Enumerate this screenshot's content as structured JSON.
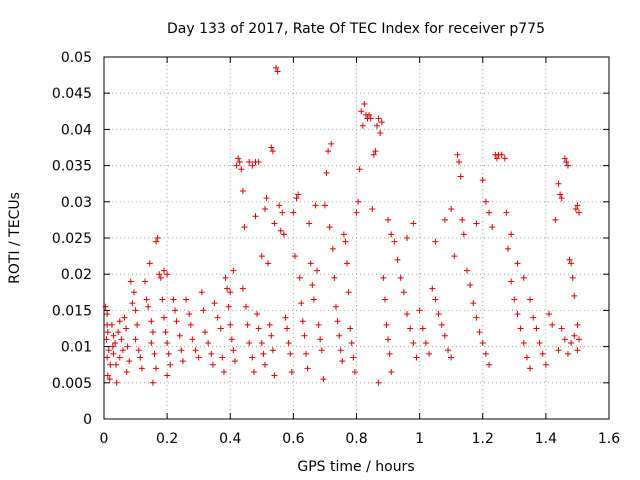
{
  "chart_data": {
    "type": "scatter",
    "title": "Day 133 of 2017, Rate Of TEC Index for receiver p775",
    "xlabel": "GPS time / hours",
    "ylabel": "ROTI / TECUs",
    "xlim": [
      0,
      1.6
    ],
    "ylim": [
      0,
      0.05
    ],
    "x_ticks": [
      0,
      0.2,
      0.4,
      0.6,
      0.8,
      1.0,
      1.2,
      1.4,
      1.6
    ],
    "x_tick_labels": [
      "0",
      "0.2",
      "0.4",
      "0.6",
      "0.8",
      "1",
      "1.2",
      "1.4",
      "1.6"
    ],
    "y_ticks": [
      0,
      0.005,
      0.01,
      0.015,
      0.02,
      0.025,
      0.03,
      0.035,
      0.04,
      0.045,
      0.05
    ],
    "y_tick_labels": [
      "0",
      "0.005",
      "0.01",
      "0.015",
      "0.02",
      "0.025",
      "0.03",
      "0.035",
      "0.04",
      "0.045",
      "0.05"
    ],
    "grid": true,
    "marker": "+",
    "marker_color": "#e00000",
    "series": [
      {
        "name": "p775",
        "points": [
          [
            0.005,
            0.0155
          ],
          [
            0.01,
            0.0145
          ],
          [
            0.01,
            0.013
          ],
          [
            0.012,
            0.012
          ],
          [
            0.008,
            0.011
          ],
          [
            0.015,
            0.0095
          ],
          [
            0.01,
            0.0085
          ],
          [
            0.02,
            0.0075
          ],
          [
            0.012,
            0.006
          ],
          [
            0.018,
            0.0055
          ],
          [
            0.025,
            0.013
          ],
          [
            0.03,
            0.0115
          ],
          [
            0.028,
            0.01
          ],
          [
            0.035,
            0.0105
          ],
          [
            0.03,
            0.009
          ],
          [
            0.038,
            0.0075
          ],
          [
            0.04,
            0.005
          ],
          [
            0.045,
            0.012
          ],
          [
            0.05,
            0.0135
          ],
          [
            0.055,
            0.011
          ],
          [
            0.06,
            0.0095
          ],
          [
            0.05,
            0.0085
          ],
          [
            0.065,
            0.014
          ],
          [
            0.07,
            0.0125
          ],
          [
            0.075,
            0.01
          ],
          [
            0.072,
            0.0065
          ],
          [
            0.08,
            0.008
          ],
          [
            0.085,
            0.019
          ],
          [
            0.09,
            0.016
          ],
          [
            0.095,
            0.0175
          ],
          [
            0.1,
            0.015
          ],
          [
            0.105,
            0.013
          ],
          [
            0.1,
            0.011
          ],
          [
            0.11,
            0.0095
          ],
          [
            0.115,
            0.0085
          ],
          [
            0.12,
            0.007
          ],
          [
            0.13,
            0.019
          ],
          [
            0.135,
            0.0165
          ],
          [
            0.14,
            0.0155
          ],
          [
            0.145,
            0.0215
          ],
          [
            0.15,
            0.0135
          ],
          [
            0.155,
            0.012
          ],
          [
            0.15,
            0.0105
          ],
          [
            0.16,
            0.009
          ],
          [
            0.165,
            0.007
          ],
          [
            0.155,
            0.005
          ],
          [
            0.165,
            0.0245
          ],
          [
            0.17,
            0.025
          ],
          [
            0.175,
            0.02
          ],
          [
            0.18,
            0.0195
          ],
          [
            0.19,
            0.0205
          ],
          [
            0.2,
            0.02
          ],
          [
            0.185,
            0.0165
          ],
          [
            0.19,
            0.014
          ],
          [
            0.195,
            0.012
          ],
          [
            0.2,
            0.0105
          ],
          [
            0.205,
            0.009
          ],
          [
            0.21,
            0.0075
          ],
          [
            0.2,
            0.006
          ],
          [
            0.22,
            0.0165
          ],
          [
            0.225,
            0.015
          ],
          [
            0.23,
            0.0135
          ],
          [
            0.24,
            0.0115
          ],
          [
            0.245,
            0.0095
          ],
          [
            0.25,
            0.008
          ],
          [
            0.26,
            0.0165
          ],
          [
            0.27,
            0.0145
          ],
          [
            0.275,
            0.013
          ],
          [
            0.28,
            0.011
          ],
          [
            0.29,
            0.0095
          ],
          [
            0.3,
            0.0085
          ],
          [
            0.31,
            0.0175
          ],
          [
            0.315,
            0.015
          ],
          [
            0.32,
            0.012
          ],
          [
            0.33,
            0.0105
          ],
          [
            0.34,
            0.009
          ],
          [
            0.345,
            0.0075
          ],
          [
            0.35,
            0.016
          ],
          [
            0.36,
            0.014
          ],
          [
            0.37,
            0.0125
          ],
          [
            0.375,
            0.0085
          ],
          [
            0.38,
            0.0065
          ],
          [
            0.385,
            0.0195
          ],
          [
            0.39,
            0.018
          ],
          [
            0.4,
            0.0175
          ],
          [
            0.395,
            0.0155
          ],
          [
            0.4,
            0.013
          ],
          [
            0.405,
            0.011
          ],
          [
            0.41,
            0.0095
          ],
          [
            0.415,
            0.008
          ],
          [
            0.41,
            0.0205
          ],
          [
            0.42,
            0.035
          ],
          [
            0.425,
            0.036
          ],
          [
            0.43,
            0.0355
          ],
          [
            0.435,
            0.0345
          ],
          [
            0.44,
            0.0315
          ],
          [
            0.445,
            0.0265
          ],
          [
            0.44,
            0.018
          ],
          [
            0.45,
            0.0155
          ],
          [
            0.455,
            0.013
          ],
          [
            0.46,
            0.0105
          ],
          [
            0.47,
            0.0085
          ],
          [
            0.475,
            0.0065
          ],
          [
            0.46,
            0.0355
          ],
          [
            0.47,
            0.035
          ],
          [
            0.48,
            0.0355
          ],
          [
            0.49,
            0.0355
          ],
          [
            0.48,
            0.028
          ],
          [
            0.485,
            0.0145
          ],
          [
            0.49,
            0.0125
          ],
          [
            0.5,
            0.0105
          ],
          [
            0.505,
            0.009
          ],
          [
            0.51,
            0.0075
          ],
          [
            0.5,
            0.0225
          ],
          [
            0.51,
            0.029
          ],
          [
            0.515,
            0.0305
          ],
          [
            0.52,
            0.0215
          ],
          [
            0.525,
            0.013
          ],
          [
            0.53,
            0.0115
          ],
          [
            0.535,
            0.0095
          ],
          [
            0.54,
            0.006
          ],
          [
            0.53,
            0.0375
          ],
          [
            0.535,
            0.037
          ],
          [
            0.54,
            0.027
          ],
          [
            0.545,
            0.0485
          ],
          [
            0.55,
            0.048
          ],
          [
            0.555,
            0.0295
          ],
          [
            0.56,
            0.026
          ],
          [
            0.565,
            0.0285
          ],
          [
            0.57,
            0.0255
          ],
          [
            0.575,
            0.014
          ],
          [
            0.58,
            0.0125
          ],
          [
            0.585,
            0.0105
          ],
          [
            0.59,
            0.009
          ],
          [
            0.595,
            0.0065
          ],
          [
            0.6,
            0.0285
          ],
          [
            0.605,
            0.0225
          ],
          [
            0.61,
            0.0305
          ],
          [
            0.615,
            0.031
          ],
          [
            0.62,
            0.0195
          ],
          [
            0.625,
            0.016
          ],
          [
            0.63,
            0.0135
          ],
          [
            0.635,
            0.0115
          ],
          [
            0.64,
            0.009
          ],
          [
            0.645,
            0.007
          ],
          [
            0.65,
            0.027
          ],
          [
            0.655,
            0.0215
          ],
          [
            0.66,
            0.0185
          ],
          [
            0.665,
            0.0165
          ],
          [
            0.67,
            0.0295
          ],
          [
            0.675,
            0.0205
          ],
          [
            0.68,
            0.013
          ],
          [
            0.685,
            0.011
          ],
          [
            0.69,
            0.0095
          ],
          [
            0.695,
            0.0055
          ],
          [
            0.7,
            0.0295
          ],
          [
            0.705,
            0.034
          ],
          [
            0.71,
            0.037
          ],
          [
            0.72,
            0.038
          ],
          [
            0.715,
            0.0265
          ],
          [
            0.725,
            0.0235
          ],
          [
            0.73,
            0.0195
          ],
          [
            0.735,
            0.0155
          ],
          [
            0.74,
            0.0135
          ],
          [
            0.745,
            0.0115
          ],
          [
            0.75,
            0.0095
          ],
          [
            0.755,
            0.008
          ],
          [
            0.76,
            0.0255
          ],
          [
            0.765,
            0.0245
          ],
          [
            0.77,
            0.0215
          ],
          [
            0.775,
            0.0175
          ],
          [
            0.78,
            0.0125
          ],
          [
            0.785,
            0.0105
          ],
          [
            0.79,
            0.0085
          ],
          [
            0.795,
            0.0065
          ],
          [
            0.8,
            0.0285
          ],
          [
            0.805,
            0.03
          ],
          [
            0.81,
            0.0345
          ],
          [
            0.815,
            0.0425
          ],
          [
            0.82,
            0.0405
          ],
          [
            0.825,
            0.0435
          ],
          [
            0.83,
            0.042
          ],
          [
            0.835,
            0.0415
          ],
          [
            0.84,
            0.042
          ],
          [
            0.845,
            0.0415
          ],
          [
            0.85,
            0.029
          ],
          [
            0.855,
            0.0365
          ],
          [
            0.86,
            0.037
          ],
          [
            0.865,
            0.0405
          ],
          [
            0.87,
            0.0415
          ],
          [
            0.875,
            0.0395
          ],
          [
            0.88,
            0.041
          ],
          [
            0.885,
            0.0195
          ],
          [
            0.89,
            0.0165
          ],
          [
            0.895,
            0.013
          ],
          [
            0.9,
            0.011
          ],
          [
            0.905,
            0.009
          ],
          [
            0.91,
            0.0065
          ],
          [
            0.87,
            0.005
          ],
          [
            0.9,
            0.0275
          ],
          [
            0.91,
            0.0255
          ],
          [
            0.92,
            0.0245
          ],
          [
            0.93,
            0.022
          ],
          [
            0.94,
            0.0195
          ],
          [
            0.95,
            0.0175
          ],
          [
            0.96,
            0.0145
          ],
          [
            0.97,
            0.0125
          ],
          [
            0.98,
            0.0105
          ],
          [
            0.99,
            0.0085
          ],
          [
            0.96,
            0.025
          ],
          [
            0.98,
            0.027
          ],
          [
            1.0,
            0.015
          ],
          [
            1.01,
            0.0125
          ],
          [
            1.02,
            0.0105
          ],
          [
            1.03,
            0.009
          ],
          [
            1.04,
            0.018
          ],
          [
            1.05,
            0.0165
          ],
          [
            1.06,
            0.0145
          ],
          [
            1.07,
            0.013
          ],
          [
            1.08,
            0.0115
          ],
          [
            1.09,
            0.0095
          ],
          [
            1.1,
            0.0085
          ],
          [
            1.05,
            0.0245
          ],
          [
            1.08,
            0.0275
          ],
          [
            1.1,
            0.029
          ],
          [
            1.11,
            0.0225
          ],
          [
            1.12,
            0.0365
          ],
          [
            1.125,
            0.0355
          ],
          [
            1.13,
            0.0335
          ],
          [
            1.135,
            0.0275
          ],
          [
            1.14,
            0.0255
          ],
          [
            1.15,
            0.0205
          ],
          [
            1.16,
            0.0185
          ],
          [
            1.17,
            0.016
          ],
          [
            1.18,
            0.014
          ],
          [
            1.19,
            0.012
          ],
          [
            1.2,
            0.0105
          ],
          [
            1.21,
            0.009
          ],
          [
            1.22,
            0.0075
          ],
          [
            1.18,
            0.027
          ],
          [
            1.2,
            0.033
          ],
          [
            1.21,
            0.03
          ],
          [
            1.22,
            0.0285
          ],
          [
            1.23,
            0.0265
          ],
          [
            1.24,
            0.0365
          ],
          [
            1.245,
            0.036
          ],
          [
            1.25,
            0.0365
          ],
          [
            1.26,
            0.0365
          ],
          [
            1.27,
            0.036
          ],
          [
            1.275,
            0.0285
          ],
          [
            1.28,
            0.0235
          ],
          [
            1.29,
            0.019
          ],
          [
            1.3,
            0.0165
          ],
          [
            1.31,
            0.0145
          ],
          [
            1.32,
            0.0125
          ],
          [
            1.33,
            0.0105
          ],
          [
            1.34,
            0.0085
          ],
          [
            1.35,
            0.007
          ],
          [
            1.29,
            0.0255
          ],
          [
            1.31,
            0.0215
          ],
          [
            1.33,
            0.0195
          ],
          [
            1.35,
            0.0165
          ],
          [
            1.36,
            0.014
          ],
          [
            1.37,
            0.0125
          ],
          [
            1.38,
            0.0105
          ],
          [
            1.39,
            0.009
          ],
          [
            1.4,
            0.0075
          ],
          [
            1.41,
            0.0145
          ],
          [
            1.42,
            0.013
          ],
          [
            1.43,
            0.0275
          ],
          [
            1.44,
            0.0325
          ],
          [
            1.445,
            0.031
          ],
          [
            1.45,
            0.0305
          ],
          [
            1.46,
            0.036
          ],
          [
            1.465,
            0.0355
          ],
          [
            1.47,
            0.035
          ],
          [
            1.475,
            0.022
          ],
          [
            1.48,
            0.0215
          ],
          [
            1.485,
            0.0195
          ],
          [
            1.49,
            0.017
          ],
          [
            1.495,
            0.029
          ],
          [
            1.5,
            0.0295
          ],
          [
            1.505,
            0.0285
          ],
          [
            1.5,
            0.013
          ],
          [
            1.505,
            0.011
          ],
          [
            1.5,
            0.0095
          ],
          [
            1.49,
            0.0115
          ],
          [
            1.48,
            0.0105
          ],
          [
            1.47,
            0.009
          ],
          [
            1.46,
            0.011
          ],
          [
            1.45,
            0.0125
          ],
          [
            1.44,
            0.0095
          ]
        ]
      }
    ]
  }
}
